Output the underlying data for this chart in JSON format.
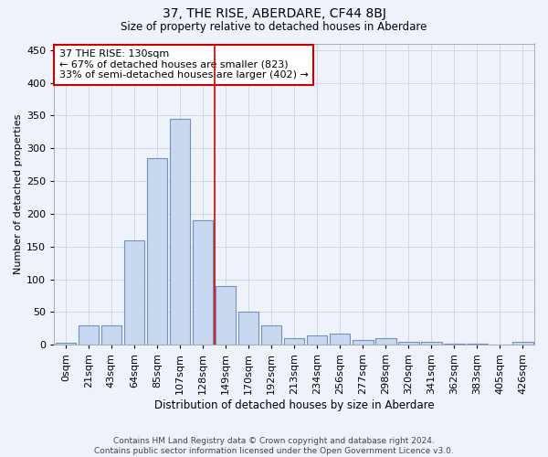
{
  "title": "37, THE RISE, ABERDARE, CF44 8BJ",
  "subtitle": "Size of property relative to detached houses in Aberdare",
  "xlabel": "Distribution of detached houses by size in Aberdare",
  "ylabel": "Number of detached properties",
  "bins": [
    "0sqm",
    "21sqm",
    "43sqm",
    "64sqm",
    "85sqm",
    "107sqm",
    "128sqm",
    "149sqm",
    "170sqm",
    "192sqm",
    "213sqm",
    "234sqm",
    "256sqm",
    "277sqm",
    "298sqm",
    "320sqm",
    "341sqm",
    "362sqm",
    "383sqm",
    "405sqm",
    "426sqm"
  ],
  "values": [
    3,
    30,
    30,
    160,
    285,
    345,
    190,
    90,
    50,
    30,
    10,
    15,
    17,
    7,
    10,
    5,
    5,
    2,
    2,
    1,
    5
  ],
  "bar_color": "#c8d8ee",
  "bar_edge_color": "#7090c0",
  "grid_color": "#d0d8e8",
  "background_color": "#eef2fa",
  "vline_x": 6.5,
  "vline_color": "#cc0000",
  "annotation_text": "37 THE RISE: 130sqm\n← 67% of detached houses are smaller (823)\n33% of semi-detached houses are larger (402) →",
  "annotation_box_color": "#ffffff",
  "annotation_box_edge": "#cc0000",
  "footer_line1": "Contains HM Land Registry data © Crown copyright and database right 2024.",
  "footer_line2": "Contains public sector information licensed under the Open Government Licence v3.0.",
  "ylim": [
    0,
    460
  ],
  "yticks": [
    0,
    50,
    100,
    150,
    200,
    250,
    300,
    350,
    400,
    450
  ],
  "title_fontsize": 10,
  "subtitle_fontsize": 8.5
}
